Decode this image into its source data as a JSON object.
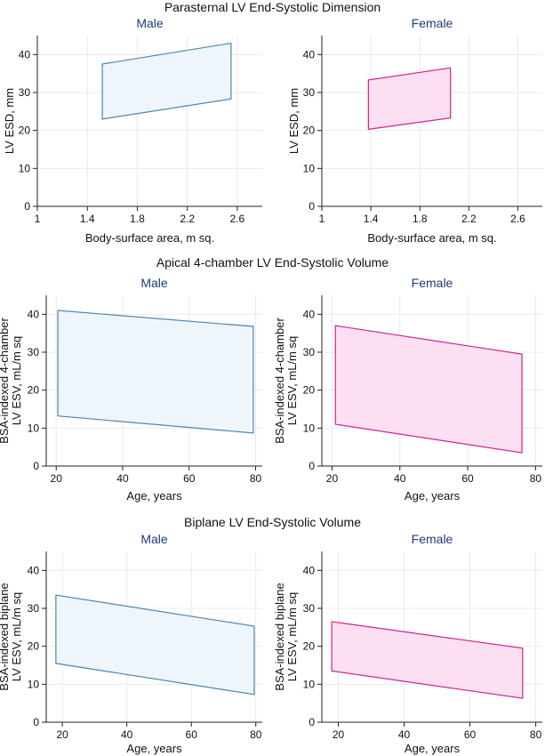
{
  "colors": {
    "male_stroke": "#4a86b0",
    "male_fill": "#eef6fc",
    "female_stroke": "#d0248a",
    "female_fill": "#fcdff1",
    "grid": "#e6ebef",
    "axis": "#222222"
  },
  "chart_data": [
    {
      "type": "area",
      "section_title": "Parasternal LV End-Systolic Dimension",
      "title": "Male",
      "xlabel": "Body-surface area, m sq.",
      "ylabel": [
        "LV ESD, mm"
      ],
      "xlim": [
        1,
        2.8
      ],
      "ylim": [
        0,
        45
      ],
      "xticks": [
        1,
        1.4,
        1.8,
        2.2,
        2.6
      ],
      "yticks": [
        0,
        10,
        20,
        30,
        40
      ],
      "grid": true,
      "series": [
        {
          "x": [
            1.52,
            2.55
          ],
          "lower": [
            23,
            28.3
          ],
          "upper": [
            37.5,
            43
          ]
        }
      ]
    },
    {
      "type": "area",
      "title": "Female",
      "xlabel": "Body-surface area, m sq.",
      "ylabel": [
        "LV ESD, mm"
      ],
      "xlim": [
        1,
        2.8
      ],
      "ylim": [
        0,
        45
      ],
      "xticks": [
        1,
        1.4,
        1.8,
        2.2,
        2.6
      ],
      "yticks": [
        0,
        10,
        20,
        30,
        40
      ],
      "grid": true,
      "series": [
        {
          "x": [
            1.38,
            2.05
          ],
          "lower": [
            20.3,
            23.3
          ],
          "upper": [
            33.3,
            36.5
          ]
        }
      ]
    },
    {
      "type": "area",
      "section_title": "Apical 4-chamber LV End-Systolic Volume",
      "title": "Male",
      "xlabel": "Age, years",
      "ylabel": [
        "BSA-indexed 4-chamber",
        "LV ESV, mL/m sq"
      ],
      "xlim": [
        17,
        82
      ],
      "ylim": [
        0,
        45
      ],
      "xticks": [
        20,
        40,
        60,
        80
      ],
      "yticks": [
        0,
        10,
        20,
        30,
        40
      ],
      "grid": true,
      "series": [
        {
          "x": [
            20.5,
            79.3
          ],
          "lower": [
            13.2,
            8.7
          ],
          "upper": [
            41,
            36.8
          ]
        }
      ]
    },
    {
      "type": "area",
      "title": "Female",
      "xlabel": "Age, years",
      "ylabel": [
        "BSA-indexed 4-chamber",
        "LV ESV, mL/m sq"
      ],
      "xlim": [
        17,
        82
      ],
      "ylim": [
        0,
        45
      ],
      "xticks": [
        20,
        40,
        60,
        80
      ],
      "yticks": [
        0,
        10,
        20,
        30,
        40
      ],
      "grid": true,
      "series": [
        {
          "x": [
            21,
            76
          ],
          "lower": [
            11,
            3.5
          ],
          "upper": [
            37,
            29.5
          ]
        }
      ]
    },
    {
      "type": "area",
      "section_title": "Biplane LV End-Systolic Volume",
      "title": "Male",
      "xlabel": "Age, years",
      "ylabel": [
        "BSA-indexed biplane",
        "LV ESV, mL/m sq"
      ],
      "xlim": [
        15,
        82
      ],
      "ylim": [
        0,
        45
      ],
      "xticks": [
        20,
        40,
        60,
        80
      ],
      "yticks": [
        0,
        10,
        20,
        30,
        40
      ],
      "grid": true,
      "series": [
        {
          "x": [
            18,
            79.5
          ],
          "lower": [
            15.5,
            7.3
          ],
          "upper": [
            33.5,
            25.3
          ]
        }
      ]
    },
    {
      "type": "area",
      "title": "Female",
      "xlabel": "Age, years",
      "ylabel": [
        "BSA-indexed biplane",
        "LV ESV, mL/m sq"
      ],
      "xlim": [
        15,
        82
      ],
      "ylim": [
        0,
        45
      ],
      "xticks": [
        20,
        40,
        60,
        80
      ],
      "yticks": [
        0,
        10,
        20,
        30,
        40
      ],
      "grid": true,
      "series": [
        {
          "x": [
            18,
            76
          ],
          "lower": [
            13.5,
            6.3
          ],
          "upper": [
            26.5,
            19.5
          ]
        }
      ]
    }
  ]
}
